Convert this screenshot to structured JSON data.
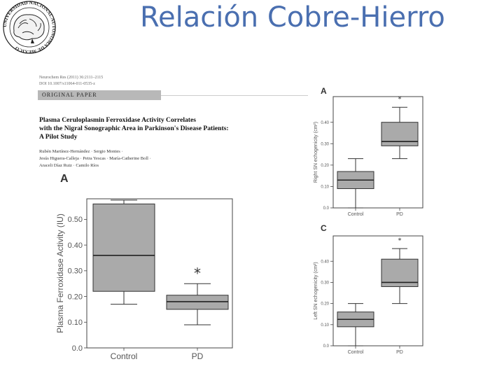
{
  "slide": {
    "title": "Relación Cobre-Hierro"
  },
  "logo": {
    "ring_text": "UNIVERSIDAD NACIONAL AUTONOMA DE MEXICO"
  },
  "paper": {
    "journal_line1": "Neurochem Res (2011) 36:2111–2115",
    "journal_line2": "DOI 10.1007/s11064-011-0535-z",
    "section": "ORIGINAL PAPER",
    "title_lines": [
      "Plasma Ceruloplasmin Ferroxidase Activity Correlates",
      "with the Nigral Sonographic Area in Parkinson's Disease Patients:",
      "A Pilot Study"
    ],
    "author_lines": [
      "Rubén Martínez-Hernández · Sergio Montes ·",
      "Jesús Higuera-Calleja · Petra Yescas · María-Catherine Boll ·",
      "Araceli Díaz Ruiz · Camilo Ríos"
    ]
  },
  "chart_data": [
    {
      "type": "box",
      "panel": "A",
      "title": "",
      "xlabel": "",
      "ylabel": "Plasma Ferroxidase Activity (IU)",
      "ylim": [
        0,
        0.58
      ],
      "yticks": [
        "0.0",
        "0.10",
        "0.20",
        "0.30",
        "0.40",
        "0.50"
      ],
      "categories": [
        "Control",
        "PD"
      ],
      "boxes": [
        {
          "min": 0.17,
          "q1": 0.22,
          "median": 0.36,
          "q3": 0.56,
          "max": 0.575
        },
        {
          "min": 0.09,
          "q1": 0.15,
          "median": 0.18,
          "q3": 0.205,
          "max": 0.25
        }
      ],
      "annotations": [
        {
          "category": "PD",
          "text": "*",
          "y": 0.29
        }
      ],
      "grid": false
    },
    {
      "type": "box",
      "panel": "A",
      "title": "",
      "xlabel": "",
      "ylabel": "Right SN echogenicity (cm²)",
      "ylim": [
        0,
        0.52
      ],
      "yticks": [
        "0.0",
        "0.10",
        "0.20",
        "0.30",
        "0.40"
      ],
      "categories": [
        "Control",
        "PD"
      ],
      "boxes": [
        {
          "min": 0.0,
          "q1": 0.09,
          "median": 0.13,
          "q3": 0.17,
          "max": 0.23
        },
        {
          "min": 0.23,
          "q1": 0.29,
          "median": 0.31,
          "q3": 0.4,
          "max": 0.47
        }
      ],
      "annotations": [
        {
          "category": "PD",
          "text": "*",
          "y": 0.51
        }
      ],
      "grid": false
    },
    {
      "type": "box",
      "panel": "C",
      "title": "",
      "xlabel": "",
      "ylabel": "Left SN echogenicity (cm²)",
      "ylim": [
        0,
        0.52
      ],
      "yticks": [
        "0.0",
        "0.10",
        "0.20",
        "0.30",
        "0.40"
      ],
      "categories": [
        "Control",
        "PD"
      ],
      "boxes": [
        {
          "min": 0.0,
          "q1": 0.09,
          "median": 0.125,
          "q3": 0.16,
          "max": 0.2
        },
        {
          "min": 0.2,
          "q1": 0.28,
          "median": 0.3,
          "q3": 0.41,
          "max": 0.46
        }
      ],
      "annotations": [
        {
          "category": "PD",
          "text": "*",
          "y": 0.5
        }
      ],
      "grid": false
    }
  ],
  "colors": {
    "title": "#4a6fb0",
    "box_fill": "#aaaaaa",
    "frame": "#444444"
  }
}
